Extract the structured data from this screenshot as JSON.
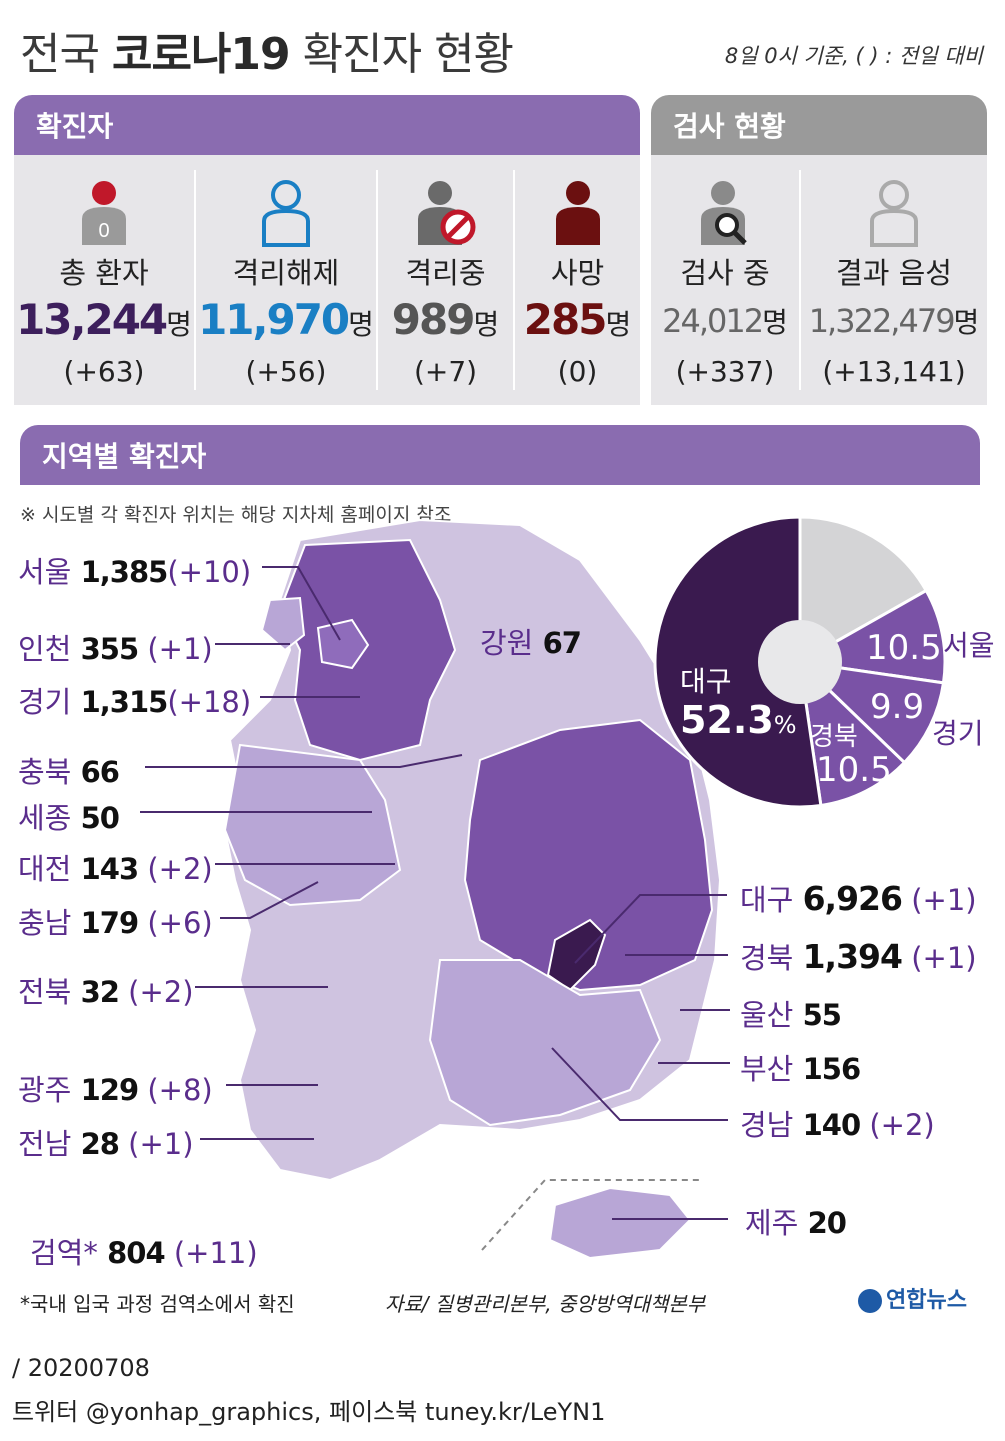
{
  "title_prefix": "전국",
  "title_bold": "코로나19",
  "title_suffix": "확진자 현황",
  "basis": "8일 0시 기준, ( ) : 전일 대비",
  "confirmed_header": "확진자",
  "testing_header": "검사 현황",
  "stats": [
    {
      "label": "총 환자",
      "value": "13,244",
      "unit": "명",
      "change": "(+63)",
      "color": "#3d1f5c",
      "icon_text": "0"
    },
    {
      "label": "격리해제",
      "value": "11,970",
      "unit": "명",
      "change": "(+56)",
      "color": "#1a7fc4"
    },
    {
      "label": "격리중",
      "value": "989",
      "unit": "명",
      "change": "(+7)",
      "color": "#555555"
    },
    {
      "label": "사망",
      "value": "285",
      "unit": "명",
      "change": "(0)",
      "color": "#6b1010"
    }
  ],
  "tests": [
    {
      "label": "검사 중",
      "value": "24,012",
      "unit": "명",
      "change": "(+337)"
    },
    {
      "label": "결과 음성",
      "value": "1,322,479",
      "unit": "명",
      "change": "(+13,141)"
    }
  ],
  "region_header": "지역별 확진자",
  "region_note": "※ 시도별 각 확진자 위치는 해당 지차체 홈페이지 참조",
  "regions_left": [
    {
      "name": "서울",
      "value": "1,385",
      "change": "(+10)"
    },
    {
      "name": "인천",
      "value": "355",
      "change": "(+1)"
    },
    {
      "name": "경기",
      "value": "1,315",
      "change": "(+18)"
    },
    {
      "name": "충북",
      "value": "66",
      "change": ""
    },
    {
      "name": "세종",
      "value": "50",
      "change": ""
    },
    {
      "name": "대전",
      "value": "143",
      "change": "(+2)"
    },
    {
      "name": "충남",
      "value": "179",
      "change": "(+6)"
    },
    {
      "name": "전북",
      "value": "32",
      "change": "(+2)"
    },
    {
      "name": "광주",
      "value": "129",
      "change": "(+8)"
    },
    {
      "name": "전남",
      "value": "28",
      "change": "(+1)"
    }
  ],
  "quarantine": {
    "name": "검역*",
    "value": "804",
    "change": "(+11)"
  },
  "regions_right": [
    {
      "name": "대구",
      "value": "6,926",
      "change": "(+1)"
    },
    {
      "name": "경북",
      "value": "1,394",
      "change": "(+1)"
    },
    {
      "name": "울산",
      "value": "55",
      "change": ""
    },
    {
      "name": "부산",
      "value": "156",
      "change": ""
    },
    {
      "name": "경남",
      "value": "140",
      "change": "(+2)"
    },
    {
      "name": "제주",
      "value": "20",
      "change": ""
    }
  ],
  "gangwon": {
    "name": "강원",
    "value": "67"
  },
  "chart_data": {
    "type": "pie",
    "slices": [
      {
        "name": "대구",
        "value": 52.3
      },
      {
        "name": "서울",
        "value": 10.5
      },
      {
        "name": "경기",
        "value": 9.9
      },
      {
        "name": "경북",
        "value": 10.5
      },
      {
        "value": 16.8
      }
    ],
    "colors": [
      "#3a1a4f",
      "#7a52a6",
      "#7a52a6",
      "#7a52a6",
      "#d4d4d6"
    ],
    "center_label": "대구",
    "center_value": "52.3",
    "center_unit": "%",
    "labels": {
      "seoul_val": "10.5",
      "seoul_name": "서울",
      "gg_val": "9.9",
      "gg_name": "경기",
      "gb_name": "경북",
      "gb_val": "10.5"
    }
  },
  "footnote": "*국내 입국 과정 검역소에서 확진",
  "source": "자료/ 질병관리본부, 중앙방역대책본부",
  "logo": "연합뉴스",
  "date": "/ 20200708",
  "social": "트위터 @yonhap_graphics, 페이스북 tuney.kr/LeYN1"
}
